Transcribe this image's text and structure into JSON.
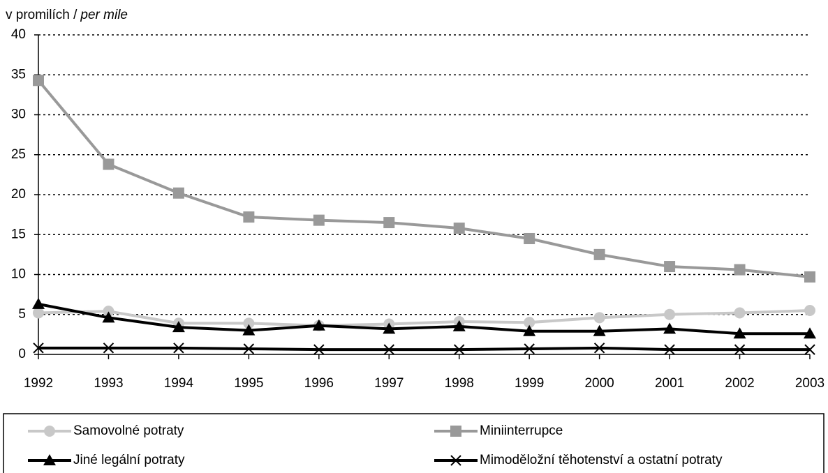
{
  "chart_data": {
    "type": "line",
    "ylabel": [
      "v promilích /",
      "per mile"
    ],
    "categories": [
      "1992",
      "1993",
      "1994",
      "1995",
      "1996",
      "1997",
      "1998",
      "1999",
      "2000",
      "2001",
      "2002",
      "2003"
    ],
    "series": [
      {
        "name": "Samovolné potraty",
        "color": "#c8c8c8",
        "marker": "circle",
        "values": [
          5.2,
          5.4,
          3.9,
          3.9,
          3.6,
          3.8,
          4.1,
          4.0,
          4.6,
          5.0,
          5.2,
          5.5
        ]
      },
      {
        "name": "Miniinterrupce",
        "color": "#999999",
        "marker": "square",
        "values": [
          34.3,
          23.8,
          20.2,
          17.2,
          16.8,
          16.5,
          15.8,
          14.5,
          12.5,
          11.0,
          10.6,
          9.7
        ]
      },
      {
        "name": "Jiné legální potraty",
        "color": "#000000",
        "marker": "triangle",
        "values": [
          6.3,
          4.6,
          3.4,
          3.0,
          3.6,
          3.2,
          3.5,
          2.9,
          2.9,
          3.2,
          2.6,
          2.6
        ]
      },
      {
        "name": "Mimoděložní těhotenství a ostatní potraty",
        "color": "#000000",
        "marker": "x",
        "values": [
          0.8,
          0.8,
          0.8,
          0.7,
          0.6,
          0.6,
          0.6,
          0.7,
          0.8,
          0.6,
          0.6,
          0.6
        ]
      }
    ],
    "ylim": [
      0,
      40
    ],
    "yticks": [
      0,
      5,
      10,
      15,
      20,
      25,
      30,
      35,
      40
    ],
    "grid": true
  }
}
